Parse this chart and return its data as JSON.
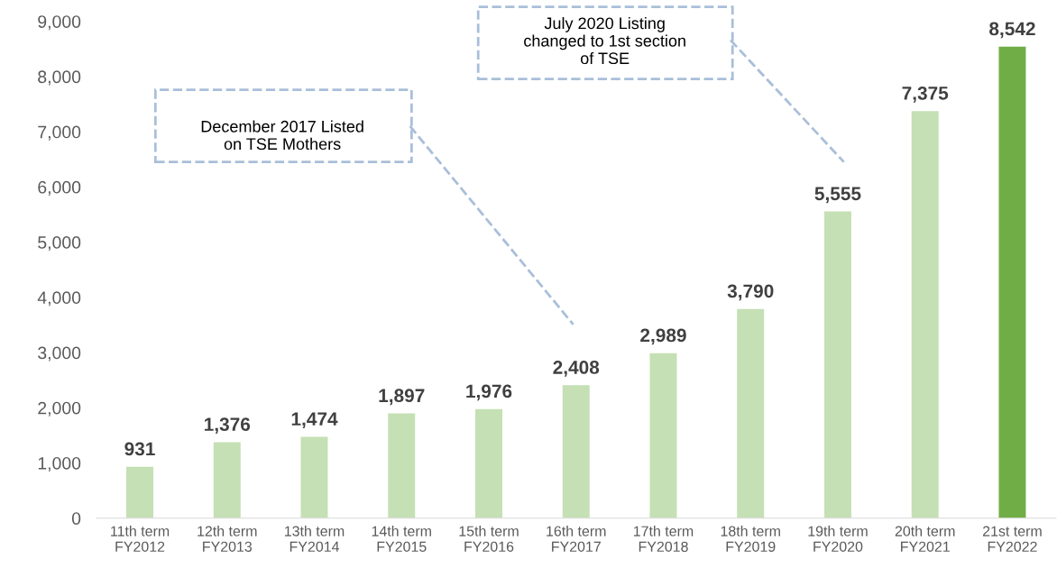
{
  "chart_data": {
    "type": "bar",
    "categories": [
      "11th term\nFY2012",
      "12th term\nFY2013",
      "13th term\nFY2014",
      "14th term\nFY2015",
      "15th term\nFY2016",
      "16th term\nFY2017",
      "17th term\nFY2018",
      "18th term\nFY2019",
      "19th term\nFY2020",
      "20th term\nFY2021",
      "21st term\nFY2022"
    ],
    "values": [
      931,
      1376,
      1474,
      1897,
      1976,
      2408,
      2989,
      3790,
      5555,
      7375,
      8542
    ],
    "colors": [
      "#c5e0b4",
      "#c5e0b4",
      "#c5e0b4",
      "#c5e0b4",
      "#c5e0b4",
      "#c5e0b4",
      "#c5e0b4",
      "#c5e0b4",
      "#c5e0b4",
      "#c5e0b4",
      "#70ad47"
    ],
    "value_labels": [
      "931",
      "1,376",
      "1,474",
      "1,897",
      "1,976",
      "2,408",
      "2,989",
      "3,790",
      "5,555",
      "7,375",
      "8,542"
    ],
    "ylim": [
      0,
      9000
    ],
    "yticks": [
      {
        "value": 0,
        "label": "0"
      },
      {
        "value": 1000,
        "label": "1,000"
      },
      {
        "value": 2000,
        "label": "2,000"
      },
      {
        "value": 3000,
        "label": "3,000"
      },
      {
        "value": 4000,
        "label": "4,000"
      },
      {
        "value": 5000,
        "label": "5,000"
      },
      {
        "value": 6000,
        "label": "6,000"
      },
      {
        "value": 7000,
        "label": "7,000"
      },
      {
        "value": 8000,
        "label": "8,000"
      },
      {
        "value": 9000,
        "label": "9,000"
      }
    ],
    "annotations": [
      "December 2017 Listed\non TSE Mothers",
      "July 2020 Listing\nchanged to 1st section\nof TSE"
    ],
    "grid": false,
    "legend": false
  }
}
